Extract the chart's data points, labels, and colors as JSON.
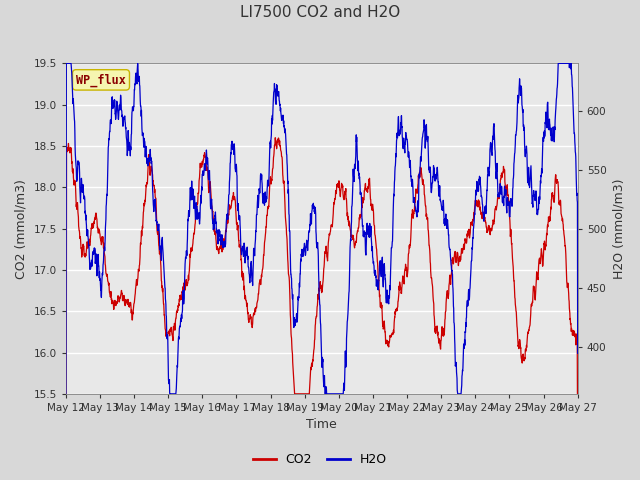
{
  "title": "LI7500 CO2 and H2O",
  "xlabel": "Time",
  "ylabel_left": "CO2 (mmol/m3)",
  "ylabel_right": "H2O (mmol/m3)",
  "ylim_left": [
    15.5,
    19.5
  ],
  "ylim_right": [
    360,
    640
  ],
  "co2_color": "#cc0000",
  "h2o_color": "#0000cc",
  "fig_bg_color": "#d8d8d8",
  "plot_bg_color": "#e8e8e8",
  "annotation_text": "WP_flux",
  "annotation_bg": "#f5f5b0",
  "annotation_edge": "#c8b400",
  "annotation_text_color": "#8b0000",
  "x_tick_labels": [
    "May 12",
    "May 13",
    "May 14",
    "May 15",
    "May 16",
    "May 17",
    "May 18",
    "May 19",
    "May 20",
    "May 21",
    "May 22",
    "May 23",
    "May 24",
    "May 25",
    "May 26",
    "May 27"
  ],
  "title_fontsize": 11,
  "axis_fontsize": 9,
  "tick_fontsize": 7.5,
  "legend_fontsize": 9,
  "n_days": 15,
  "pts_per_day": 144
}
